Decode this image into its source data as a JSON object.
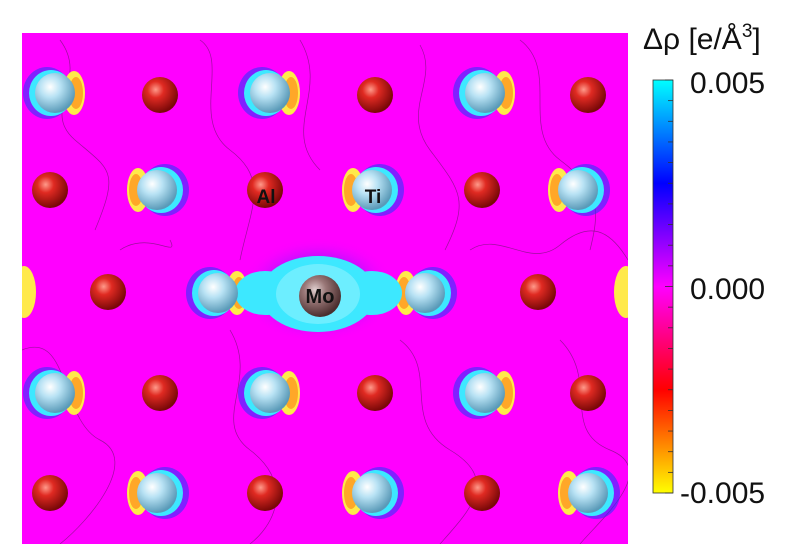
{
  "colorbar": {
    "title": "Δρ [e/Å",
    "title_sup": "3",
    "title_close": "]",
    "tick_labels": [
      "0.005",
      "0.000",
      "-0.005"
    ],
    "tick_values": [
      0.005,
      0.0,
      -0.005
    ],
    "range": [
      -0.005,
      0.005
    ],
    "colors": [
      "#00ffff",
      "#0000ff",
      "#ff00ff",
      "#ff0000",
      "#ffff00"
    ]
  },
  "map": {
    "background_color": "#ff00ff",
    "atom_labels": {
      "al": "Al",
      "ti": "Ti",
      "mo": "Mo"
    },
    "atom_colors": {
      "al": "#d01818",
      "ti": "#a9dcf2",
      "mo": "#8a6a6a"
    }
  }
}
